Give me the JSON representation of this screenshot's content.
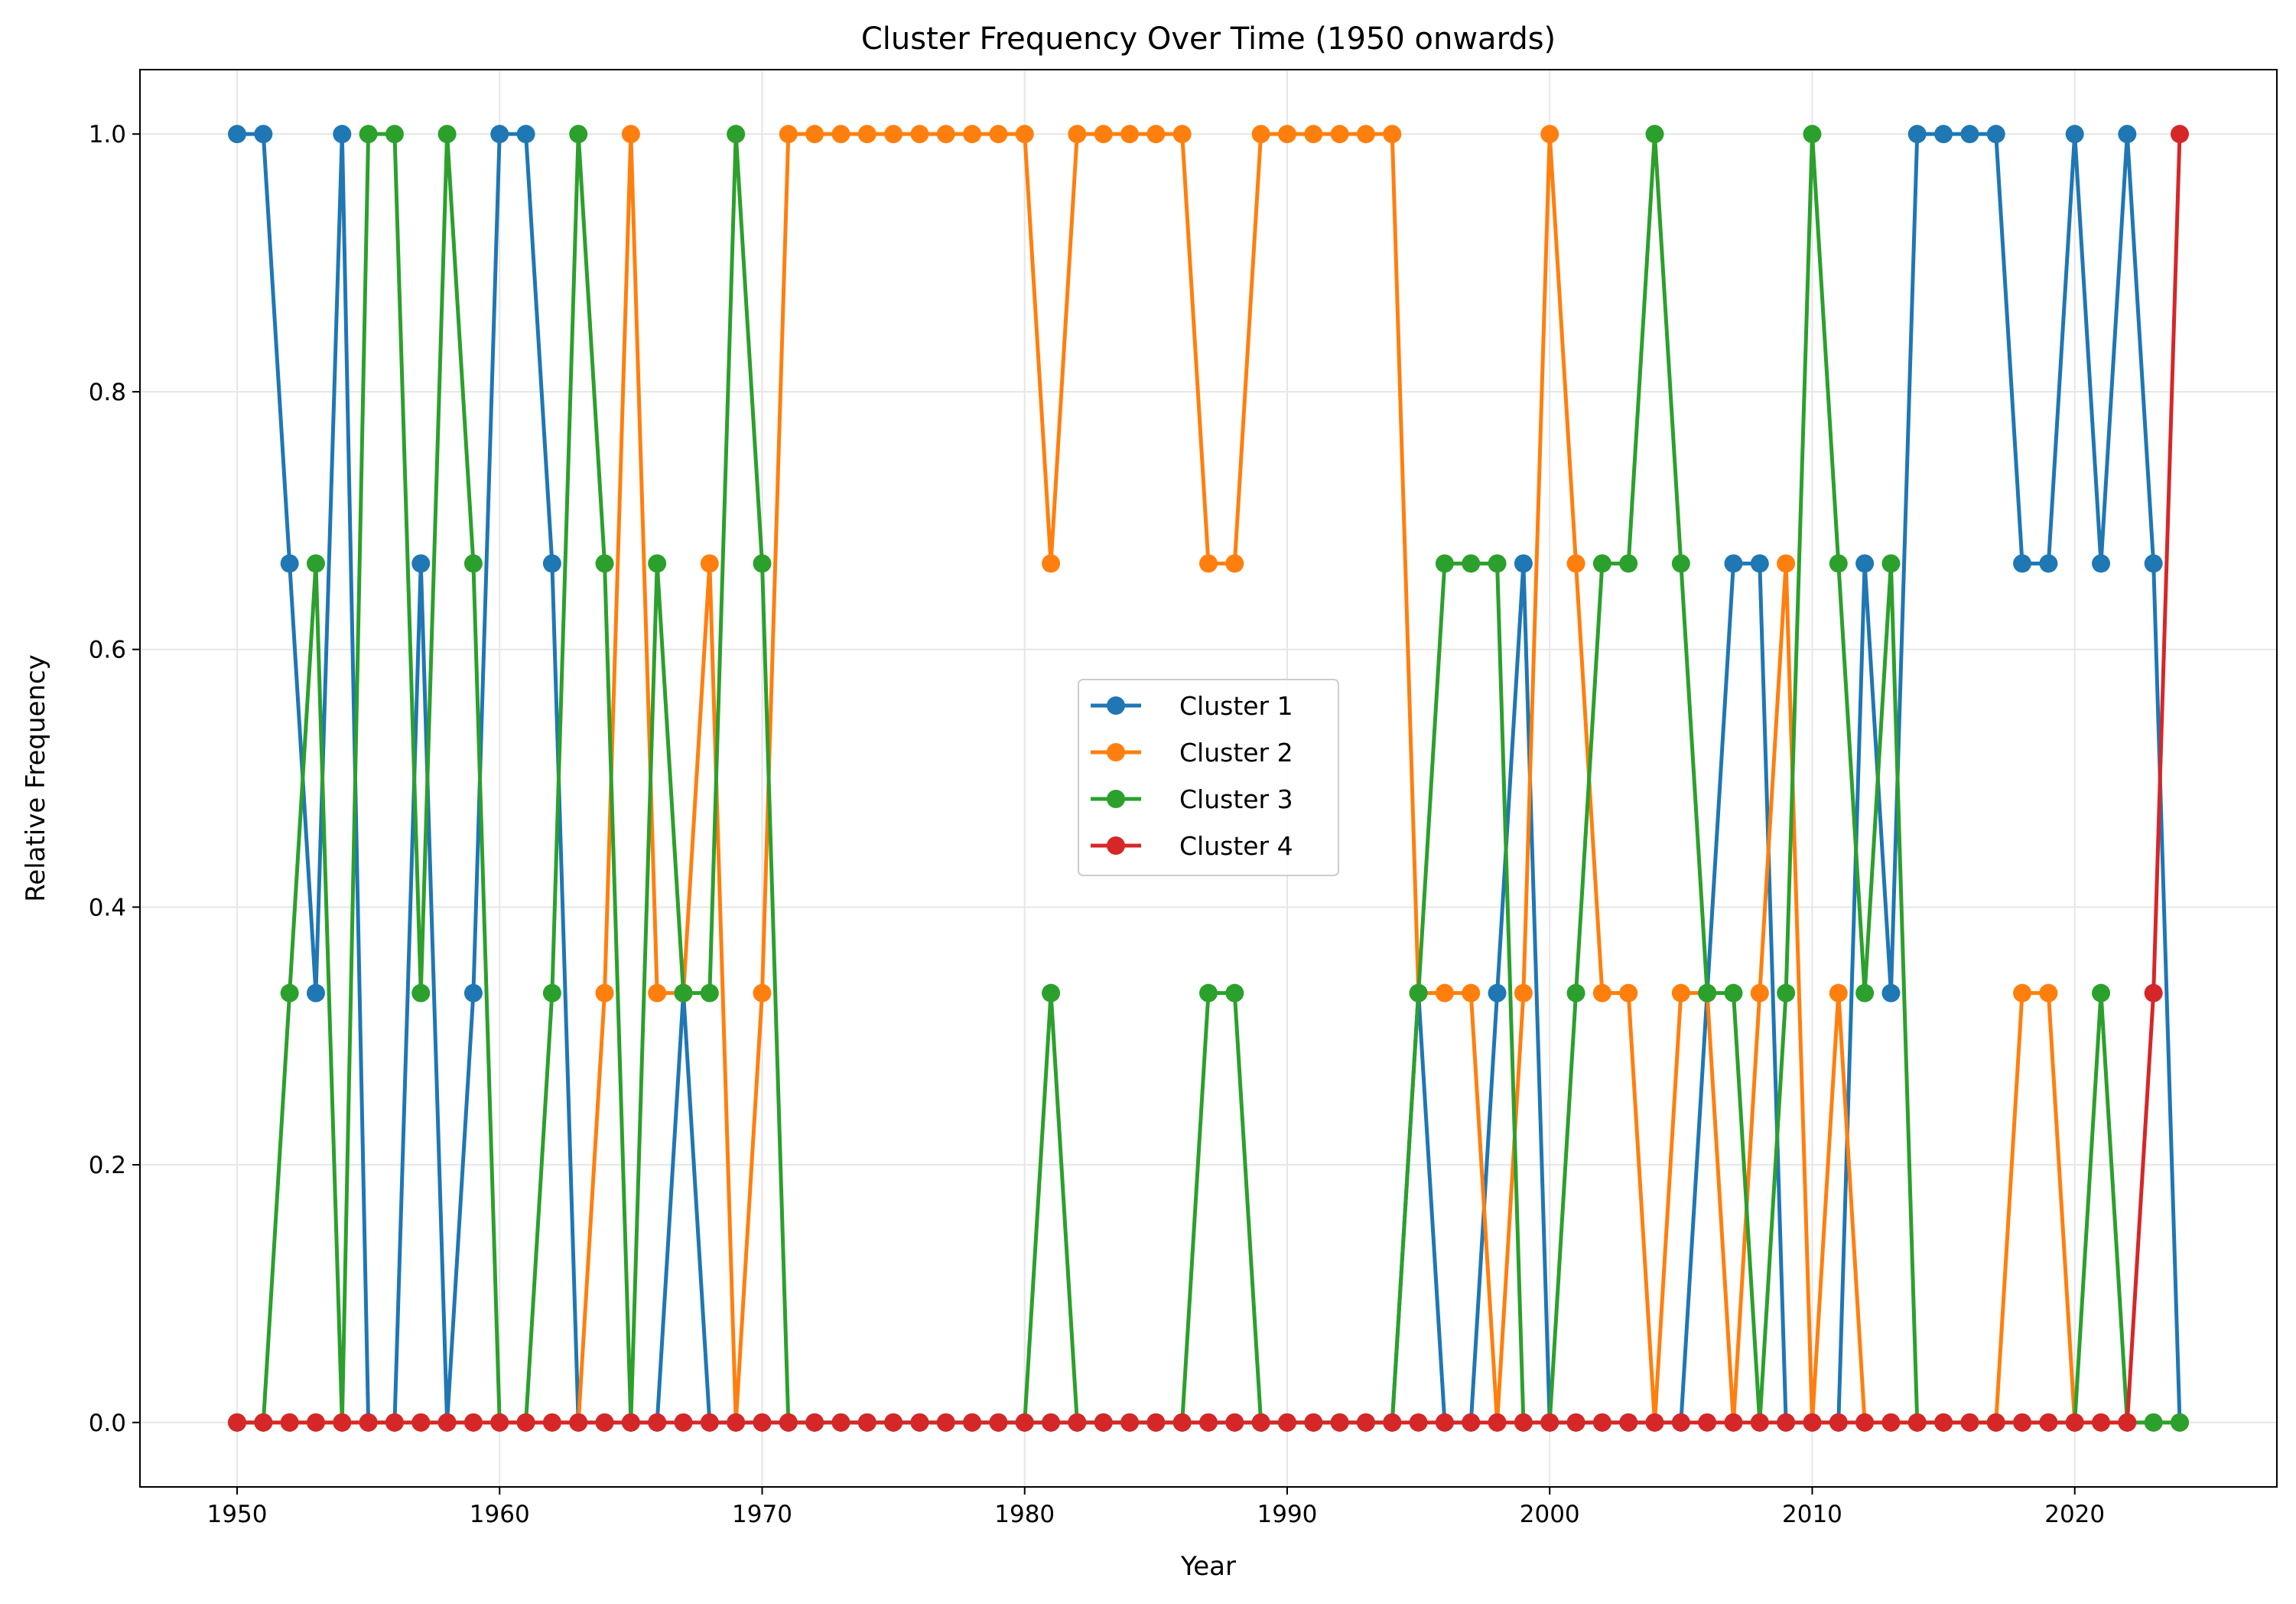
{
  "chart_data": {
    "type": "line",
    "title": "Cluster Frequency Over Time (1950 onwards)",
    "xlabel": "Year",
    "ylabel": "Relative Frequency",
    "xlim": [
      1946.3,
      2027.7
    ],
    "ylim": [
      -0.05,
      1.05
    ],
    "xticks": [
      1950,
      1960,
      1970,
      1980,
      1990,
      2000,
      2010,
      2020
    ],
    "xtick_labels": [
      "1950",
      "1960",
      "1970",
      "1980",
      "1990",
      "2000",
      "2010",
      "2020"
    ],
    "yticks": [
      0.0,
      0.2,
      0.4,
      0.6,
      0.8,
      1.0
    ],
    "ytick_labels": [
      "0.0",
      "0.2",
      "0.4",
      "0.6",
      "0.8",
      "1.0"
    ],
    "grid": true,
    "legend_position": "center",
    "x": [
      1950,
      1951,
      1952,
      1953,
      1954,
      1955,
      1956,
      1957,
      1958,
      1959,
      1960,
      1961,
      1962,
      1963,
      1964,
      1965,
      1966,
      1967,
      1968,
      1969,
      1970,
      1971,
      1972,
      1973,
      1974,
      1975,
      1976,
      1977,
      1978,
      1979,
      1980,
      1981,
      1982,
      1983,
      1984,
      1985,
      1986,
      1987,
      1988,
      1989,
      1990,
      1991,
      1992,
      1993,
      1994,
      1995,
      1996,
      1997,
      1998,
      1999,
      2000,
      2001,
      2002,
      2003,
      2004,
      2005,
      2006,
      2007,
      2008,
      2009,
      2010,
      2011,
      2012,
      2013,
      2014,
      2015,
      2016,
      2017,
      2018,
      2019,
      2020,
      2021,
      2022,
      2023,
      2024
    ],
    "series": [
      {
        "name": "Cluster 1",
        "color": "#1f77b4",
        "values": [
          1,
          1,
          0.6667,
          0.3333,
          1,
          0,
          0,
          0.6667,
          0,
          0.3333,
          1,
          1,
          0.6667,
          0,
          0,
          0,
          0,
          0.3333,
          0,
          0,
          0,
          0,
          0,
          0,
          0,
          0,
          0,
          0,
          0,
          0,
          0,
          0,
          0,
          0,
          0,
          0,
          0,
          0,
          0,
          0,
          0,
          0,
          0,
          0,
          0,
          0.3333,
          0,
          0,
          0.3333,
          0.6667,
          0,
          0,
          0,
          0,
          0,
          0,
          0.3333,
          0.6667,
          0.6667,
          0,
          0,
          0,
          0.6667,
          0.3333,
          1,
          1,
          1,
          1,
          0.6667,
          0.6667,
          1,
          0.6667,
          1,
          0.6667,
          0
        ]
      },
      {
        "name": "Cluster 2",
        "color": "#ff7f0e",
        "values": [
          0,
          0,
          0,
          0,
          0,
          0,
          0,
          0,
          0,
          0,
          0,
          0,
          0,
          0,
          0.3333,
          1,
          0.3333,
          0.3333,
          0.6667,
          0,
          0.3333,
          1,
          1,
          1,
          1,
          1,
          1,
          1,
          1,
          1,
          1,
          0.6667,
          1,
          1,
          1,
          1,
          1,
          0.6667,
          0.6667,
          1,
          1,
          1,
          1,
          1,
          1,
          0.3333,
          0.3333,
          0.3333,
          0,
          0.3333,
          1,
          0.6667,
          0.3333,
          0.3333,
          0,
          0.3333,
          0.3333,
          0,
          0.3333,
          0.6667,
          0,
          0.3333,
          0,
          0,
          0,
          0,
          0,
          0,
          0.3333,
          0.3333,
          0,
          0,
          0,
          0,
          0
        ]
      },
      {
        "name": "Cluster 3",
        "color": "#2ca02c",
        "values": [
          0,
          0,
          0.3333,
          0.6667,
          0,
          1,
          1,
          0.3333,
          1,
          0.6667,
          0,
          0,
          0.3333,
          1,
          0.6667,
          0,
          0.6667,
          0.3333,
          0.3333,
          1,
          0.6667,
          0,
          0,
          0,
          0,
          0,
          0,
          0,
          0,
          0,
          0,
          0.3333,
          0,
          0,
          0,
          0,
          0,
          0.3333,
          0.3333,
          0,
          0,
          0,
          0,
          0,
          0,
          0.3333,
          0.6667,
          0.6667,
          0.6667,
          0,
          0,
          0.3333,
          0.6667,
          0.6667,
          1,
          0.6667,
          0.3333,
          0.3333,
          0,
          0.3333,
          1,
          0.6667,
          0.3333,
          0.6667,
          0,
          0,
          0,
          0,
          0,
          0,
          0,
          0.3333,
          0,
          0,
          0
        ]
      },
      {
        "name": "Cluster 4",
        "color": "#d62728",
        "values": [
          0,
          0,
          0,
          0,
          0,
          0,
          0,
          0,
          0,
          0,
          0,
          0,
          0,
          0,
          0,
          0,
          0,
          0,
          0,
          0,
          0,
          0,
          0,
          0,
          0,
          0,
          0,
          0,
          0,
          0,
          0,
          0,
          0,
          0,
          0,
          0,
          0,
          0,
          0,
          0,
          0,
          0,
          0,
          0,
          0,
          0,
          0,
          0,
          0,
          0,
          0,
          0,
          0,
          0,
          0,
          0,
          0,
          0,
          0,
          0,
          0,
          0,
          0,
          0,
          0,
          0,
          0,
          0,
          0,
          0,
          0,
          0,
          0,
          0.3333,
          1
        ]
      }
    ]
  }
}
